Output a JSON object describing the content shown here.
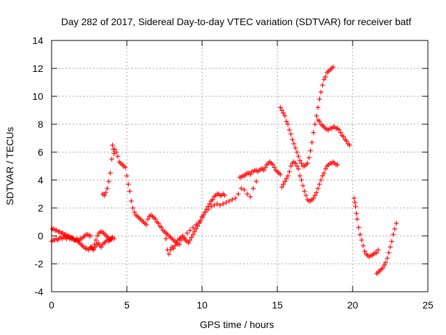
{
  "chart_data": {
    "type": "scatter",
    "title": "Day 282 of 2017, Sidereal Day-to-day VTEC variation (SDTVAR) for receiver batf",
    "xlabel": "GPS time / hours",
    "ylabel": "SDTVAR / TECUs",
    "xlim": [
      0,
      25
    ],
    "ylim": [
      -4,
      14
    ],
    "xticks": [
      0,
      5,
      10,
      15,
      20,
      25
    ],
    "yticks": [
      -4,
      -2,
      0,
      2,
      4,
      6,
      8,
      10,
      12,
      14
    ],
    "grid": true,
    "marker": "plus",
    "color": "#ff0000",
    "series": [
      {
        "x": [
          0.0,
          0.1,
          0.2,
          0.3,
          0.4,
          0.5,
          0.6,
          0.7,
          0.8,
          0.9,
          1.0,
          1.1,
          1.2,
          1.3,
          1.4,
          1.5,
          1.6,
          1.7,
          1.8,
          1.9,
          2.0,
          2.1,
          2.2,
          2.3,
          2.4,
          2.5,
          2.6
        ],
        "y": [
          -0.4,
          -0.3,
          -0.3,
          -0.2,
          -0.3,
          -0.2,
          -0.1,
          -0.2,
          -0.1,
          -0.1,
          -0.2,
          -0.1,
          -0.2,
          -0.2,
          -0.2,
          -0.3,
          -0.3,
          -0.2,
          -0.3,
          -0.2,
          -0.2,
          -0.1,
          0.0,
          0.1,
          0.1,
          0.0,
          0.0
        ]
      },
      {
        "x": [
          0.05,
          0.15,
          0.25,
          0.35,
          0.45,
          0.55,
          0.65,
          0.75,
          0.85,
          0.95,
          1.05,
          1.15,
          1.25,
          1.35,
          1.45,
          1.55,
          1.65,
          1.75,
          1.85,
          1.95,
          2.05,
          2.15,
          2.25,
          2.35,
          2.45,
          2.55,
          2.65,
          2.75,
          2.85,
          2.95,
          3.05,
          3.15,
          3.25,
          3.35,
          3.45,
          3.55,
          3.65,
          3.75,
          3.85,
          3.95,
          4.05,
          4.15
        ],
        "y": [
          0.5,
          0.5,
          0.4,
          0.4,
          0.3,
          0.3,
          0.2,
          0.2,
          0.1,
          0.1,
          0.0,
          0.0,
          -0.1,
          -0.1,
          -0.2,
          -0.3,
          -0.3,
          -0.4,
          -0.5,
          -0.6,
          -0.7,
          -0.8,
          -0.9,
          -0.9,
          -1.0,
          -0.9,
          -0.8,
          -0.9,
          -0.6,
          -0.3,
          0.0,
          0.2,
          0.3,
          0.3,
          0.2,
          0.1,
          0.0,
          -0.1,
          -0.2,
          -0.2,
          -0.1,
          -0.2
        ]
      },
      {
        "x": [
          2.6,
          2.7,
          2.8,
          2.9,
          3.0,
          3.1,
          3.2,
          3.3,
          3.4,
          3.5,
          3.6,
          3.7,
          3.8,
          3.9,
          4.0
        ],
        "y": [
          -0.8,
          -0.9,
          -1.0,
          -0.8,
          -0.6,
          -0.5,
          -0.7,
          -0.8,
          -0.6,
          -0.5,
          -0.4,
          -0.3,
          -0.4,
          -0.3,
          -0.2
        ]
      },
      {
        "x": [
          3.4,
          3.5,
          3.6,
          3.7,
          3.8,
          3.9,
          4.0,
          4.05,
          4.1,
          4.15,
          4.2,
          4.3,
          4.4,
          4.5,
          4.6,
          4.7,
          4.8,
          4.9,
          5.0,
          5.1,
          5.2,
          5.3,
          5.4,
          5.5,
          5.6,
          5.7,
          5.8,
          5.9,
          6.0,
          6.1,
          6.2,
          6.3
        ],
        "y": [
          3.0,
          2.9,
          3.1,
          3.4,
          3.9,
          4.5,
          5.5,
          6.5,
          6.2,
          5.9,
          6.2,
          6.0,
          5.7,
          5.3,
          5.2,
          5.1,
          5.0,
          4.9,
          4.3,
          3.7,
          3.2,
          2.5,
          2.0,
          1.7,
          1.5,
          1.4,
          1.3,
          1.2,
          1.1,
          1.0,
          0.9,
          0.8
        ]
      },
      {
        "x": [
          6.4,
          6.5,
          6.6,
          6.7,
          6.8,
          6.9,
          7.0,
          7.1,
          7.2,
          7.3,
          7.4,
          7.5,
          7.6,
          7.7,
          7.8,
          7.9,
          8.0,
          8.1,
          8.2,
          8.3,
          8.4,
          8.5
        ],
        "y": [
          1.2,
          1.4,
          1.5,
          1.4,
          1.3,
          1.2,
          1.0,
          0.9,
          0.7,
          0.6,
          0.4,
          0.3,
          0.2,
          0.1,
          0.0,
          -0.1,
          -0.2,
          -0.3,
          -0.4,
          -0.5,
          -0.6,
          -0.6
        ]
      },
      {
        "x": [
          7.6,
          7.7,
          7.8,
          7.9,
          8.0,
          8.1,
          8.2,
          8.3,
          8.4,
          8.5,
          8.6,
          8.7,
          8.8,
          8.9,
          9.0,
          9.1,
          9.2,
          9.3,
          9.4,
          9.5,
          9.6,
          9.7,
          9.8,
          9.9,
          10.0,
          10.1,
          10.2,
          10.3,
          10.4,
          10.5,
          10.6,
          10.7,
          10.8,
          10.9,
          11.0,
          11.1,
          11.2,
          11.3,
          11.4,
          11.5
        ],
        "y": [
          -0.2,
          -1.0,
          -1.3,
          -1.0,
          -0.8,
          -0.9,
          -0.7,
          -0.5,
          -0.3,
          -0.2,
          -0.1,
          0.0,
          -0.2,
          -0.3,
          -0.4,
          -0.5,
          -0.3,
          -0.1,
          0.1,
          0.3,
          0.5,
          0.7,
          0.9,
          1.1,
          1.3,
          1.5,
          1.7,
          1.9,
          2.1,
          2.3,
          2.5,
          2.6,
          2.8,
          2.9,
          3.0,
          3.0,
          2.9,
          2.9,
          3.0,
          2.9
        ]
      },
      {
        "x": [
          8.6,
          8.8,
          9.0,
          9.2,
          9.4,
          9.6,
          9.8,
          10.0,
          10.2,
          10.4,
          10.6,
          10.8,
          11.0,
          11.2,
          11.4,
          11.6,
          11.8,
          12.0,
          12.2,
          12.4,
          12.6,
          12.8,
          13.0,
          13.2,
          13.4,
          13.6
        ],
        "y": [
          -0.3,
          -0.1,
          0.2,
          0.4,
          0.6,
          0.8,
          1.0,
          1.4,
          1.7,
          1.9,
          2.1,
          2.2,
          2.3,
          2.2,
          2.3,
          2.4,
          2.5,
          2.6,
          2.7,
          3.0,
          3.4,
          3.3,
          3.0,
          2.8,
          3.4,
          3.9
        ]
      },
      {
        "x": [
          12.5,
          12.6,
          12.7,
          12.8,
          12.9,
          13.0,
          13.1,
          13.2,
          13.3,
          13.4,
          13.5,
          13.6,
          13.7,
          13.8,
          13.9,
          14.0,
          14.1,
          14.2,
          14.3,
          14.4,
          14.5,
          14.6,
          14.7,
          14.8,
          14.9,
          15.0,
          15.1,
          15.2
        ],
        "y": [
          4.2,
          4.2,
          4.3,
          4.3,
          4.4,
          4.5,
          4.5,
          4.4,
          4.6,
          4.6,
          4.7,
          4.7,
          4.6,
          4.7,
          4.8,
          4.8,
          4.7,
          4.9,
          5.1,
          5.2,
          5.3,
          5.2,
          5.1,
          4.9,
          4.7,
          4.6,
          4.5,
          4.4
        ]
      },
      {
        "x": [
          15.2,
          15.3,
          15.4,
          15.5,
          15.6,
          15.7,
          15.8,
          15.9,
          16.0,
          16.1,
          16.2,
          16.3,
          16.4,
          16.5,
          16.6,
          16.7,
          16.8,
          16.9,
          17.0,
          17.1,
          17.2,
          17.3,
          17.4,
          17.5,
          17.6,
          17.7,
          17.8,
          17.9,
          18.0,
          18.1,
          18.2,
          18.3,
          18.4,
          18.5,
          18.6,
          18.7
        ],
        "y": [
          9.2,
          9.0,
          8.8,
          8.6,
          8.2,
          8.0,
          7.6,
          7.3,
          6.9,
          6.6,
          6.3,
          6.0,
          5.7,
          5.4,
          5.2,
          5.0,
          5.0,
          5.1,
          5.2,
          5.6,
          6.1,
          6.7,
          7.4,
          8.0,
          8.6,
          9.2,
          9.8,
          10.3,
          10.8,
          11.2,
          11.4,
          11.7,
          11.8,
          11.9,
          12.0,
          12.1
        ]
      },
      {
        "x": [
          15.3,
          15.4,
          15.5,
          15.6,
          15.7,
          15.8,
          15.9,
          16.0,
          16.1,
          16.2,
          16.3,
          16.4,
          16.5,
          16.6,
          16.7,
          16.8,
          16.9,
          17.0,
          17.1,
          17.2,
          17.3,
          17.4,
          17.5,
          17.6,
          17.7,
          17.8,
          17.9,
          18.0,
          18.1,
          18.2,
          18.3,
          18.4,
          18.5,
          18.6,
          18.7,
          18.8,
          18.9,
          19.0
        ],
        "y": [
          3.5,
          3.7,
          3.9,
          4.1,
          4.3,
          4.6,
          5.0,
          5.2,
          5.3,
          5.2,
          5.0,
          4.8,
          4.3,
          4.0,
          3.6,
          3.2,
          2.9,
          2.6,
          2.5,
          2.5,
          2.6,
          2.7,
          2.9,
          3.1,
          3.4,
          3.7,
          4.0,
          4.3,
          4.5,
          4.8,
          5.0,
          5.1,
          5.2,
          5.2,
          5.3,
          5.2,
          5.1,
          5.1
        ]
      },
      {
        "x": [
          17.7,
          17.8,
          17.9,
          18.0,
          18.1,
          18.2,
          18.3,
          18.4,
          18.5,
          18.6,
          18.7,
          18.8,
          18.9,
          19.0,
          19.1,
          19.2,
          19.3,
          19.4,
          19.5,
          19.6,
          19.7,
          19.8
        ],
        "y": [
          8.3,
          8.2,
          8.0,
          7.9,
          7.8,
          7.7,
          7.6,
          7.6,
          7.7,
          7.7,
          7.8,
          7.8,
          7.7,
          7.7,
          7.6,
          7.4,
          7.2,
          7.1,
          6.9,
          6.8,
          6.6,
          6.5
        ]
      },
      {
        "x": [
          20.1,
          20.15,
          20.2,
          20.25,
          20.3,
          20.4,
          20.5,
          20.6,
          20.7,
          20.8,
          20.9,
          21.0,
          21.1,
          21.2,
          21.3,
          21.4,
          21.5,
          21.6,
          21.7
        ],
        "y": [
          2.7,
          2.4,
          2.1,
          1.6,
          1.2,
          0.6,
          0.1,
          -0.3,
          -0.7,
          -1.1,
          -1.3,
          -1.4,
          -1.5,
          -1.4,
          -1.4,
          -1.3,
          -1.2,
          -1.2,
          -1.0
        ]
      },
      {
        "x": [
          21.6,
          21.7,
          21.8,
          21.9,
          22.0,
          22.1,
          22.2,
          22.3,
          22.4,
          22.5,
          22.6,
          22.7,
          22.8,
          22.9
        ],
        "y": [
          -2.7,
          -2.6,
          -2.5,
          -2.4,
          -2.3,
          -2.1,
          -1.9,
          -1.6,
          -1.2,
          -0.8,
          -0.4,
          0.1,
          0.5,
          0.9
        ]
      }
    ]
  }
}
